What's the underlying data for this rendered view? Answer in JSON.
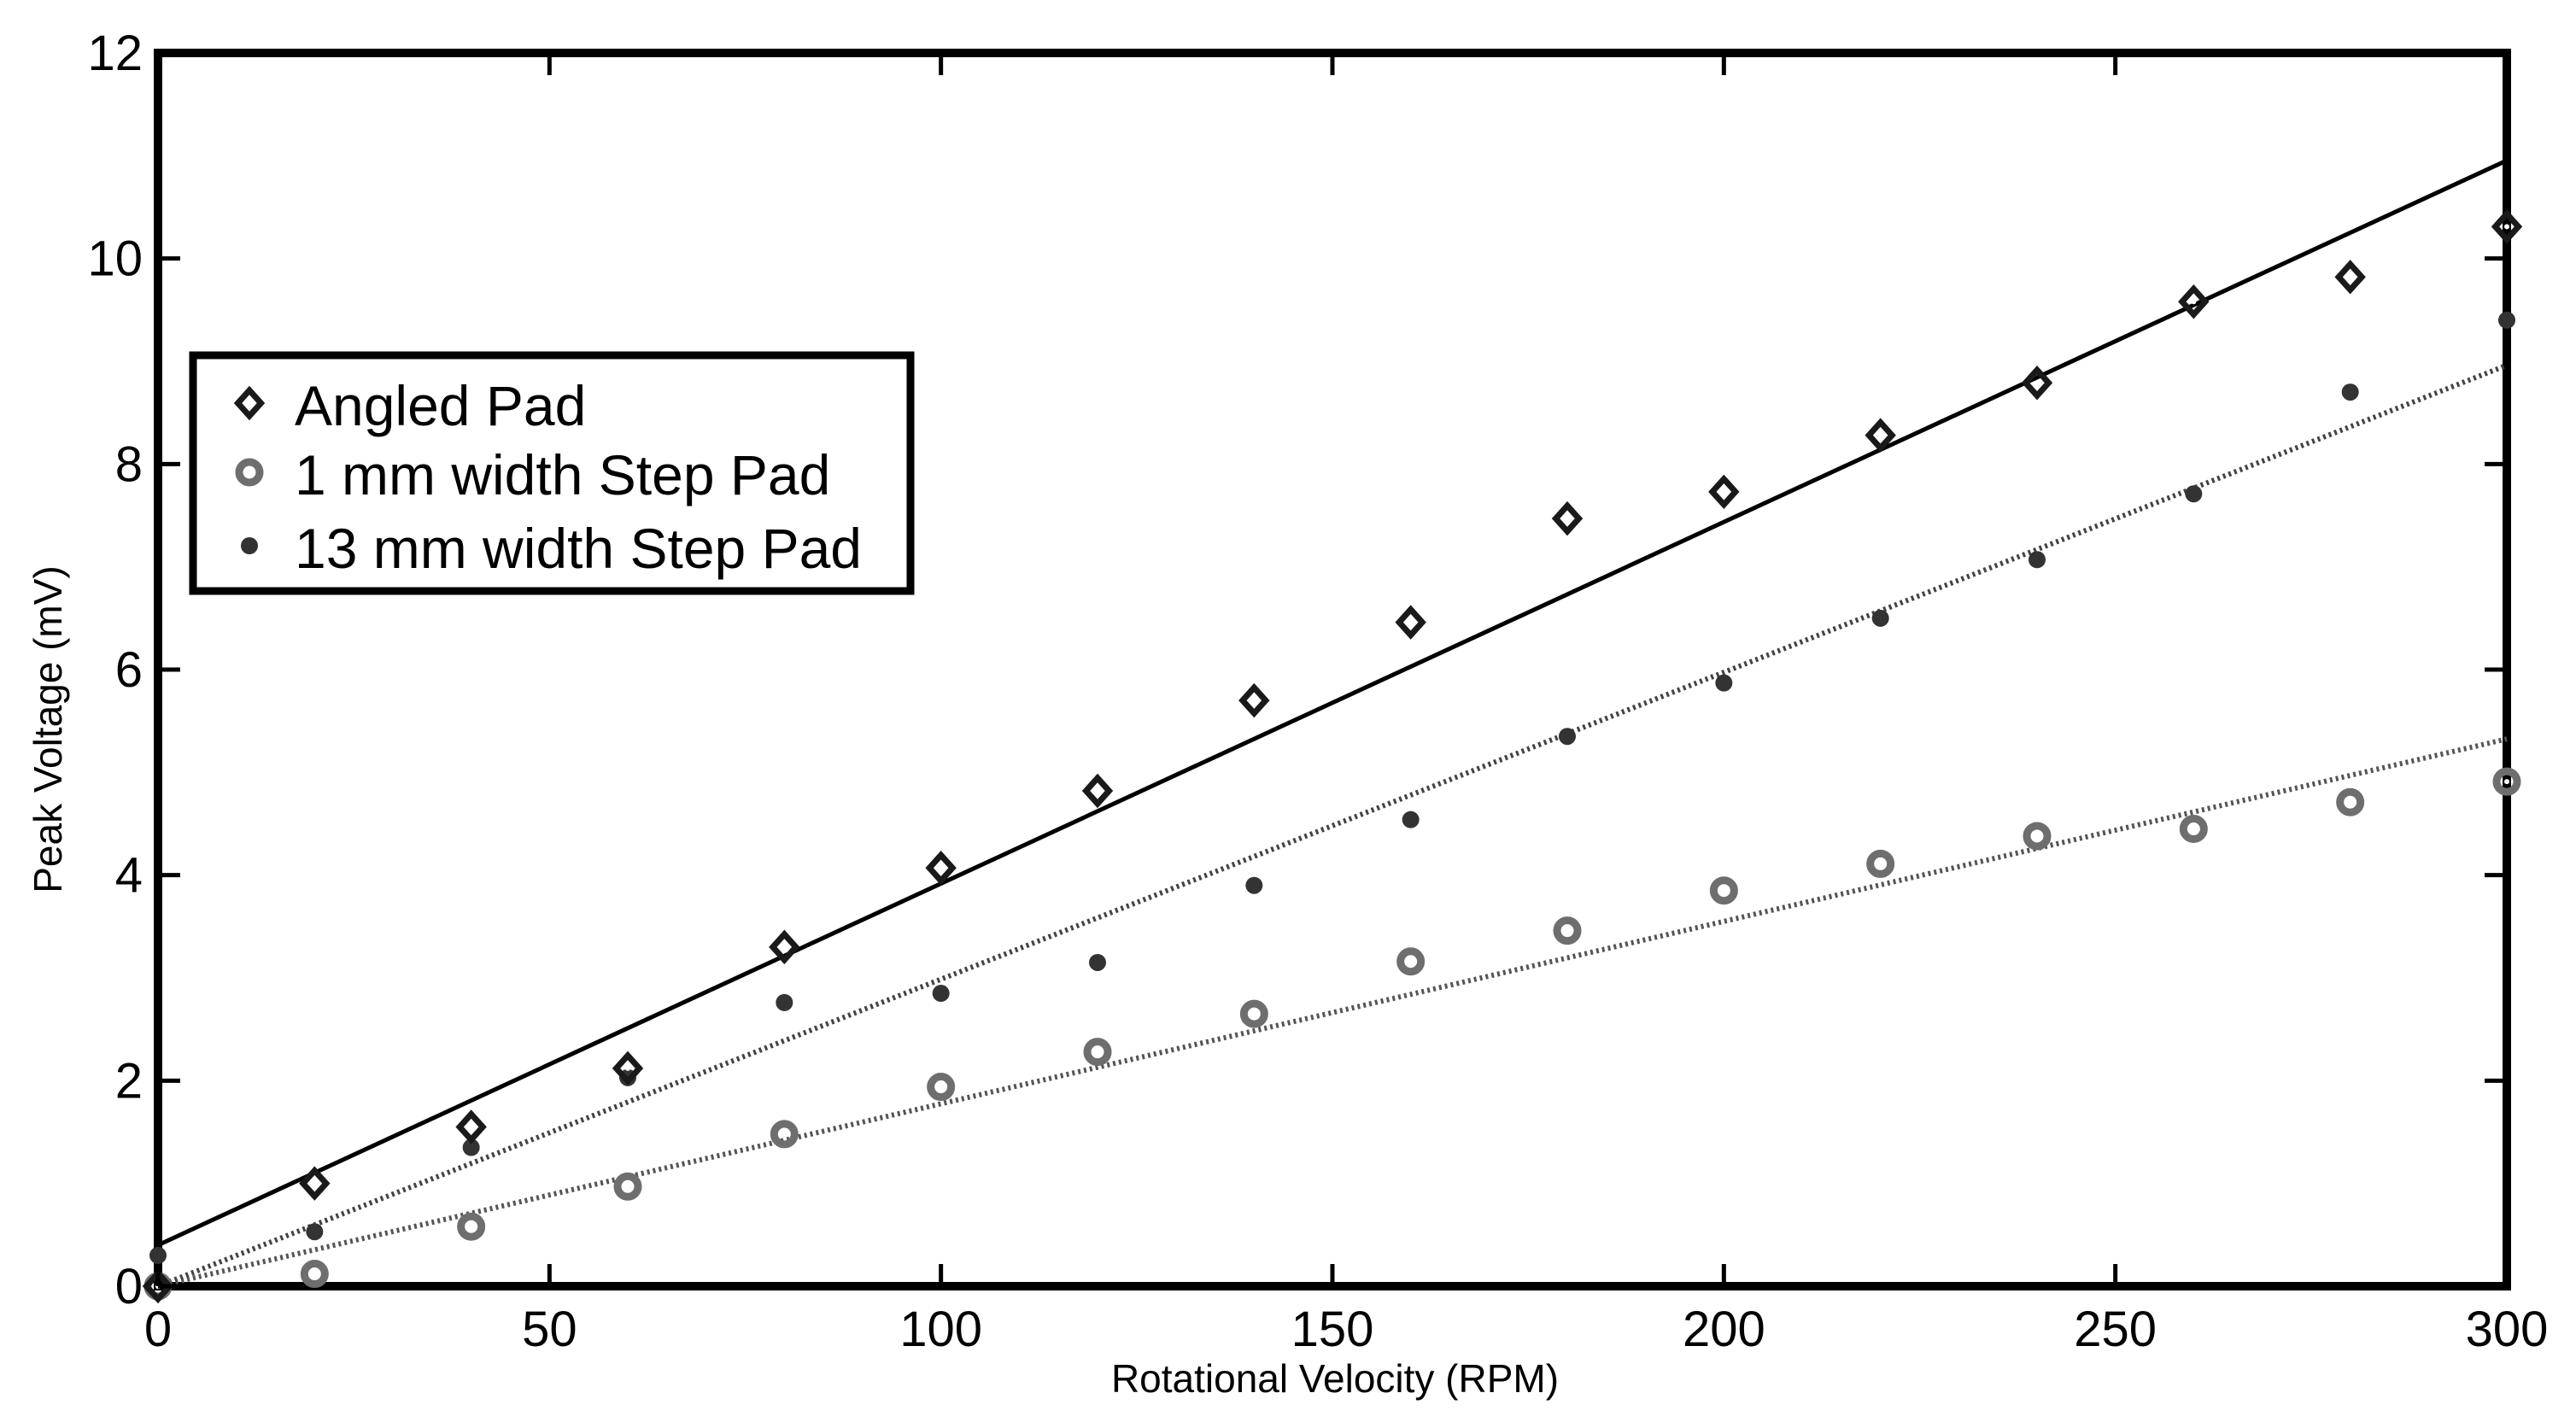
{
  "chart_data": {
    "type": "scatter",
    "title": "",
    "xlabel": "Rotational Velocity (RPM)",
    "ylabel": "Peak Voltage (mV)",
    "xlim": [
      0,
      300
    ],
    "ylim": [
      0,
      12
    ],
    "xticks": [
      0,
      50,
      100,
      150,
      200,
      250,
      300
    ],
    "yticks": [
      0,
      2,
      4,
      6,
      8,
      10,
      12
    ],
    "grid": false,
    "legend_position": "upper-left",
    "series": [
      {
        "name": "Angled Pad",
        "marker": "diamond",
        "color": "#1a1a1a",
        "x": [
          0,
          20,
          40,
          60,
          80,
          100,
          120,
          140,
          160,
          180,
          200,
          220,
          240,
          260,
          280,
          300
        ],
        "y": [
          0.0,
          1.0,
          1.55,
          2.12,
          3.3,
          4.07,
          4.82,
          5.7,
          6.46,
          7.47,
          7.73,
          8.28,
          8.79,
          9.58,
          9.82,
          10.31
        ],
        "fit": {
          "style": "solid",
          "color": "#000000",
          "slope": 0.03518,
          "intercept": 0.4
        }
      },
      {
        "name": "1 mm width Step Pad",
        "marker": "ring",
        "color": "#6e6e6e",
        "x": [
          0,
          20,
          40,
          60,
          80,
          100,
          120,
          140,
          160,
          180,
          200,
          220,
          240,
          260,
          280,
          300
        ],
        "y": [
          0.0,
          0.12,
          0.58,
          0.97,
          1.48,
          1.94,
          2.28,
          2.65,
          3.16,
          3.46,
          3.85,
          4.11,
          4.38,
          4.45,
          4.71,
          4.91
        ],
        "fit": {
          "style": "dotted",
          "color": "#555555",
          "slope": 0.01775,
          "intercept": 0.0
        }
      },
      {
        "name": "13 mm width Step Pad",
        "marker": "dot",
        "color": "#333333",
        "x": [
          0,
          20,
          40,
          60,
          80,
          100,
          120,
          140,
          160,
          180,
          200,
          220,
          240,
          260,
          280,
          300
        ],
        "y": [
          0.3,
          0.53,
          1.35,
          2.03,
          2.76,
          2.85,
          3.15,
          3.9,
          4.54,
          5.35,
          5.87,
          6.5,
          7.07,
          7.71,
          8.7,
          9.4
        ],
        "fit": {
          "style": "dotted",
          "color": "#444444",
          "slope": 0.02987,
          "intercept": 0.0
        }
      }
    ]
  }
}
